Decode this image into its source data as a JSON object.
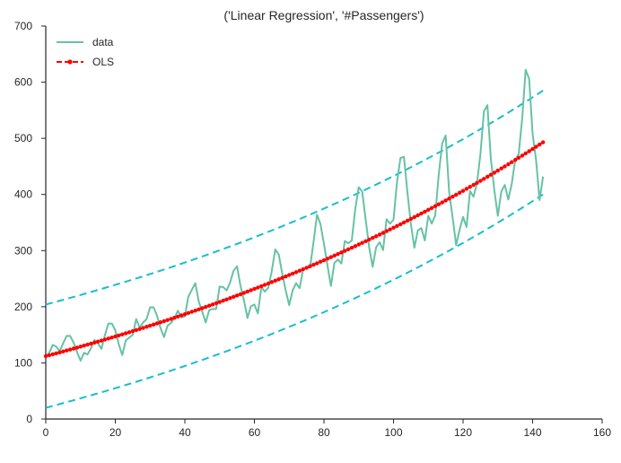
{
  "chart_data": {
    "type": "line",
    "title": "('Linear Regression', '#Passengers')",
    "xlabel": "",
    "ylabel": "",
    "xlim": [
      0,
      160
    ],
    "ylim": [
      0,
      700
    ],
    "x_ticks": [
      0,
      20,
      40,
      60,
      80,
      100,
      120,
      140,
      160
    ],
    "y_ticks": [
      0,
      100,
      200,
      300,
      400,
      500,
      600,
      700
    ],
    "grid": false,
    "legend_position": "top-left",
    "series": [
      {
        "name": "data",
        "color": "#66c2a5",
        "style": "solid",
        "x": [
          0,
          1,
          2,
          3,
          4,
          5,
          6,
          7,
          8,
          9,
          10,
          11,
          12,
          13,
          14,
          15,
          16,
          17,
          18,
          19,
          20,
          21,
          22,
          23,
          24,
          25,
          26,
          27,
          28,
          29,
          30,
          31,
          32,
          33,
          34,
          35,
          36,
          37,
          38,
          39,
          40,
          41,
          42,
          43,
          44,
          45,
          46,
          47,
          48,
          49,
          50,
          51,
          52,
          53,
          54,
          55,
          56,
          57,
          58,
          59,
          60,
          61,
          62,
          63,
          64,
          65,
          66,
          67,
          68,
          69,
          70,
          71,
          72,
          73,
          74,
          75,
          76,
          77,
          78,
          79,
          80,
          81,
          82,
          83,
          84,
          85,
          86,
          87,
          88,
          89,
          90,
          91,
          92,
          93,
          94,
          95,
          96,
          97,
          98,
          99,
          100,
          101,
          102,
          103,
          104,
          105,
          106,
          107,
          108,
          109,
          110,
          111,
          112,
          113,
          114,
          115,
          116,
          117,
          118,
          119,
          120,
          121,
          122,
          123,
          124,
          125,
          126,
          127,
          128,
          129,
          130,
          131,
          132,
          133,
          134,
          135,
          136,
          137,
          138,
          139,
          140,
          141,
          142,
          143
        ],
        "y": [
          112,
          118,
          132,
          129,
          121,
          135,
          148,
          148,
          136,
          119,
          104,
          118,
          115,
          126,
          141,
          135,
          125,
          149,
          170,
          170,
          158,
          133,
          114,
          140,
          145,
          150,
          178,
          163,
          172,
          178,
          199,
          199,
          184,
          162,
          146,
          166,
          171,
          180,
          193,
          181,
          183,
          218,
          230,
          242,
          209,
          191,
          172,
          194,
          196,
          196,
          236,
          235,
          229,
          243,
          264,
          272,
          237,
          211,
          180,
          201,
          204,
          188,
          235,
          227,
          234,
          264,
          302,
          293,
          259,
          229,
          203,
          229,
          242,
          233,
          267,
          269,
          270,
          315,
          364,
          347,
          312,
          274,
          237,
          278,
          284,
          277,
          317,
          313,
          318,
          374,
          413,
          405,
          355,
          306,
          271,
          306,
          315,
          301,
          356,
          348,
          355,
          422,
          465,
          467,
          404,
          347,
          305,
          336,
          340,
          318,
          362,
          348,
          363,
          435,
          491,
          505,
          404,
          359,
          310,
          337,
          360,
          342,
          406,
          396,
          420,
          472,
          548,
          559,
          463,
          407,
          362,
          405,
          417,
          391,
          419,
          461,
          472,
          535,
          622,
          606,
          508,
          461,
          390,
          432
        ]
      },
      {
        "name": "OLS",
        "color": "#ff0000",
        "style": "dashed-markers",
        "x_range": [
          0,
          143
        ],
        "start": 112,
        "end": 493
      },
      {
        "name": "",
        "color": "#17becf",
        "style": "dashed",
        "role": "upper-bound",
        "x_range": [
          0,
          143
        ],
        "start": 204,
        "end": 585
      },
      {
        "name": "",
        "color": "#17becf",
        "style": "dashed",
        "role": "lower-bound",
        "x_range": [
          0,
          143
        ],
        "start": 20,
        "end": 400
      }
    ]
  }
}
